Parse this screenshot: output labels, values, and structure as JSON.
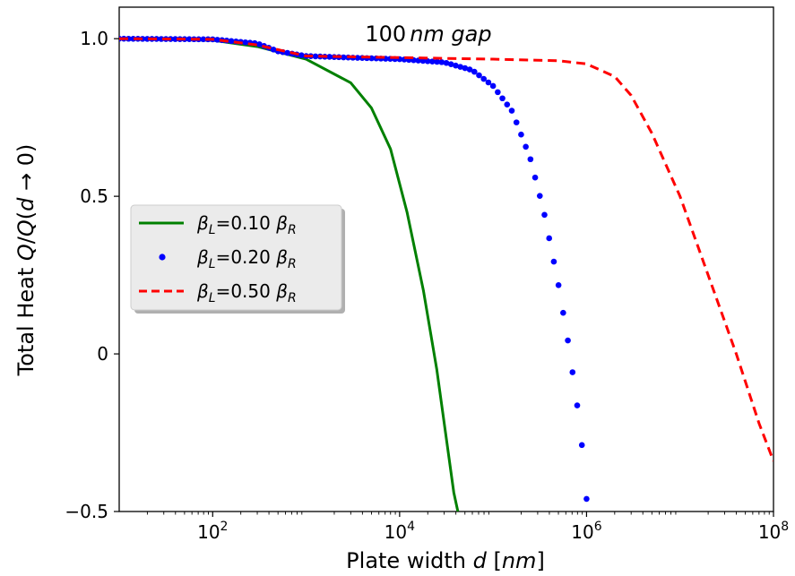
{
  "chart_data": {
    "type": "line",
    "xscale": "log",
    "xlim": [
      10,
      100000000
    ],
    "ylim": [
      -0.5,
      1.1
    ],
    "xticks": [
      100,
      10000,
      1000000,
      100000000
    ],
    "xtick_labels": [
      {
        "base": "10",
        "exp": "2"
      },
      {
        "base": "10",
        "exp": "4"
      },
      {
        "base": "10",
        "exp": "6"
      },
      {
        "base": "10",
        "exp": "8"
      }
    ],
    "yticks": [
      {
        "value": 1.0,
        "label": "1.0"
      },
      {
        "value": 0.5,
        "label": "0.5"
      },
      {
        "value": 0.0,
        "label": "0"
      },
      {
        "value": -0.5,
        "label": "−0.5"
      }
    ],
    "xlabel": {
      "prefix": "Plate width ",
      "var": "d",
      "mid": " [",
      "unit": "nm",
      "suffix": "]"
    },
    "ylabel": {
      "prefix": "Total Heat ",
      "q1": "Q",
      "slash": "/",
      "q2": "Q",
      "open": "(",
      "d": "d",
      "arrow": " → 0)"
    },
    "annotation": {
      "num": "100",
      "unit": "nm gap"
    },
    "legend_position": "center-left",
    "grid": false,
    "series": [
      {
        "name": "βL=0.10 βR",
        "beta": "β",
        "sub_l": "L",
        "value_text": "=0.10 ",
        "sub_r": "R",
        "style": "solid",
        "color": "#008000",
        "points": [
          [
            10,
            1.0
          ],
          [
            100,
            0.995
          ],
          [
            300,
            0.975
          ],
          [
            1000,
            0.935
          ],
          [
            3000,
            0.86
          ],
          [
            5000,
            0.78
          ],
          [
            8000,
            0.65
          ],
          [
            12000,
            0.45
          ],
          [
            18000,
            0.2
          ],
          [
            25000,
            -0.05
          ],
          [
            32000,
            -0.28
          ],
          [
            38000,
            -0.44
          ],
          [
            42000,
            -0.5
          ]
        ]
      },
      {
        "name": "βL=0.20 βR",
        "beta": "β",
        "sub_l": "L",
        "value_text": "=0.20 ",
        "sub_r": "R",
        "style": "dotted",
        "color": "#0000ff",
        "points": [
          [
            10,
            1.0
          ],
          [
            100,
            0.998
          ],
          [
            300,
            0.985
          ],
          [
            500,
            0.96
          ],
          [
            1000,
            0.945
          ],
          [
            3000,
            0.94
          ],
          [
            10000,
            0.935
          ],
          [
            30000,
            0.925
          ],
          [
            60000,
            0.9
          ],
          [
            100000,
            0.85
          ],
          [
            160000,
            0.77
          ],
          [
            250000,
            0.62
          ],
          [
            350000,
            0.45
          ],
          [
            500000,
            0.22
          ],
          [
            650000,
            0.02
          ],
          [
            800000,
            -0.17
          ],
          [
            900000,
            -0.3
          ],
          [
            1000000,
            -0.46
          ]
        ]
      },
      {
        "name": "βL=0.50 βR",
        "beta": "β",
        "sub_l": "L",
        "value_text": "=0.50 ",
        "sub_r": "R",
        "style": "dashed",
        "color": "#ff0000",
        "points": [
          [
            10,
            1.0
          ],
          [
            100,
            0.998
          ],
          [
            300,
            0.98
          ],
          [
            1000,
            0.945
          ],
          [
            10000,
            0.94
          ],
          [
            100000,
            0.935
          ],
          [
            500000,
            0.93
          ],
          [
            1000000,
            0.92
          ],
          [
            2000000,
            0.88
          ],
          [
            3000000,
            0.82
          ],
          [
            5000000,
            0.7
          ],
          [
            10000000,
            0.5
          ],
          [
            20000000,
            0.25
          ],
          [
            40000000,
            0.0
          ],
          [
            70000000,
            -0.22
          ],
          [
            100000000,
            -0.34
          ]
        ]
      }
    ]
  }
}
